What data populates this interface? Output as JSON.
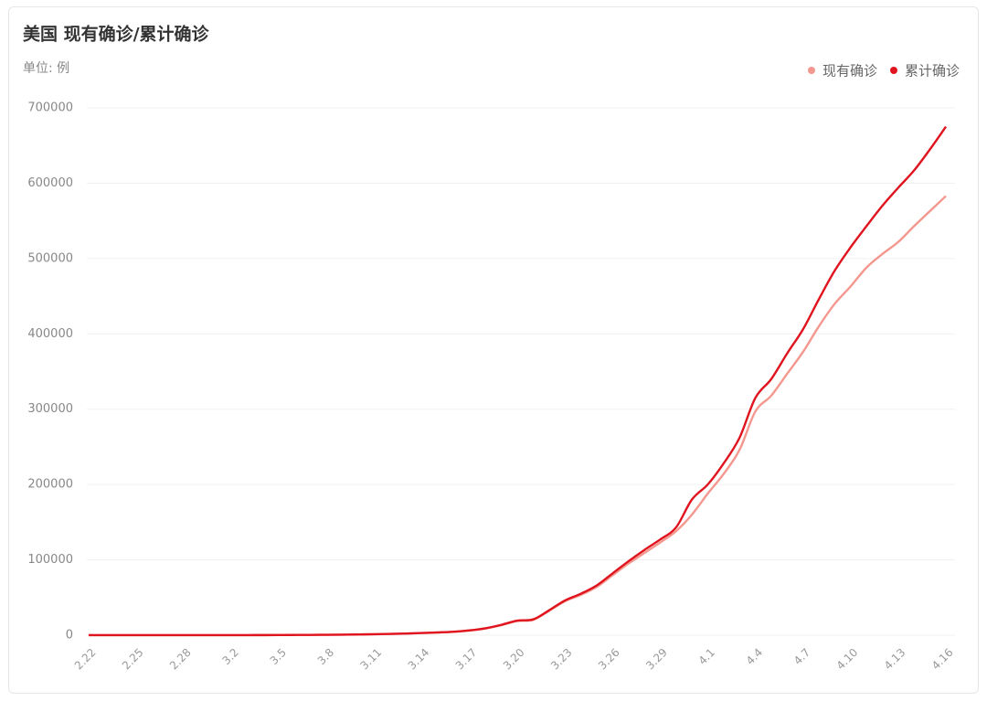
{
  "chart_data": {
    "type": "line",
    "title": "美国 现有确诊/累计确诊",
    "unit_label": "单位: 例",
    "categories": [
      "2.22",
      null,
      null,
      "2.25",
      null,
      null,
      "2.28",
      null,
      null,
      "3.2",
      null,
      null,
      "3.5",
      null,
      null,
      "3.8",
      null,
      null,
      "3.11",
      null,
      null,
      "3.14",
      null,
      null,
      "3.17",
      null,
      null,
      "3.20",
      null,
      null,
      "3.23",
      null,
      null,
      "3.26",
      null,
      null,
      "3.29",
      null,
      null,
      "4.1",
      null,
      null,
      "4.4",
      null,
      null,
      "4.7",
      null,
      null,
      "4.10",
      null,
      null,
      "4.13",
      null,
      null,
      "4.16"
    ],
    "series": [
      {
        "name": "现有确诊",
        "color": "#f4978e",
        "values": [
          35,
          35,
          51,
          51,
          57,
          58,
          59,
          65,
          69,
          91,
          113,
          145,
          205,
          300,
          410,
          510,
          670,
          950,
          1240,
          1620,
          2150,
          2800,
          3500,
          4450,
          6150,
          8850,
          13300,
          18800,
          20400,
          32200,
          45000,
          53500,
          64000,
          79500,
          95000,
          109000,
          123000,
          138000,
          160000,
          188000,
          214000,
          246000,
          297000,
          318000,
          347000,
          376000,
          410000,
          440000,
          463000,
          488000,
          506000,
          522000,
          543000,
          563000,
          583000
        ]
      },
      {
        "name": "累计确诊",
        "color": "#e0141e",
        "values": [
          35,
          35,
          53,
          53,
          59,
          60,
          62,
          68,
          75,
          100,
          124,
          158,
          221,
          319,
          435,
          541,
          704,
          994,
          1301,
          1697,
          2247,
          2943,
          3680,
          4663,
          6411,
          9197,
          13779,
          19367,
          21000,
          33000,
          46000,
          55000,
          66000,
          82000,
          98000,
          113000,
          127000,
          143000,
          180000,
          200000,
          228000,
          262000,
          315000,
          340000,
          374000,
          406000,
          446000,
          484000,
          515000,
          543000,
          570000,
          594000,
          617000,
          645000,
          675000
        ]
      }
    ],
    "ylim": [
      0,
      700000
    ],
    "yticks": [
      0,
      100000,
      200000,
      300000,
      400000,
      500000,
      600000,
      700000
    ],
    "grid": true,
    "legend": "top-right"
  }
}
